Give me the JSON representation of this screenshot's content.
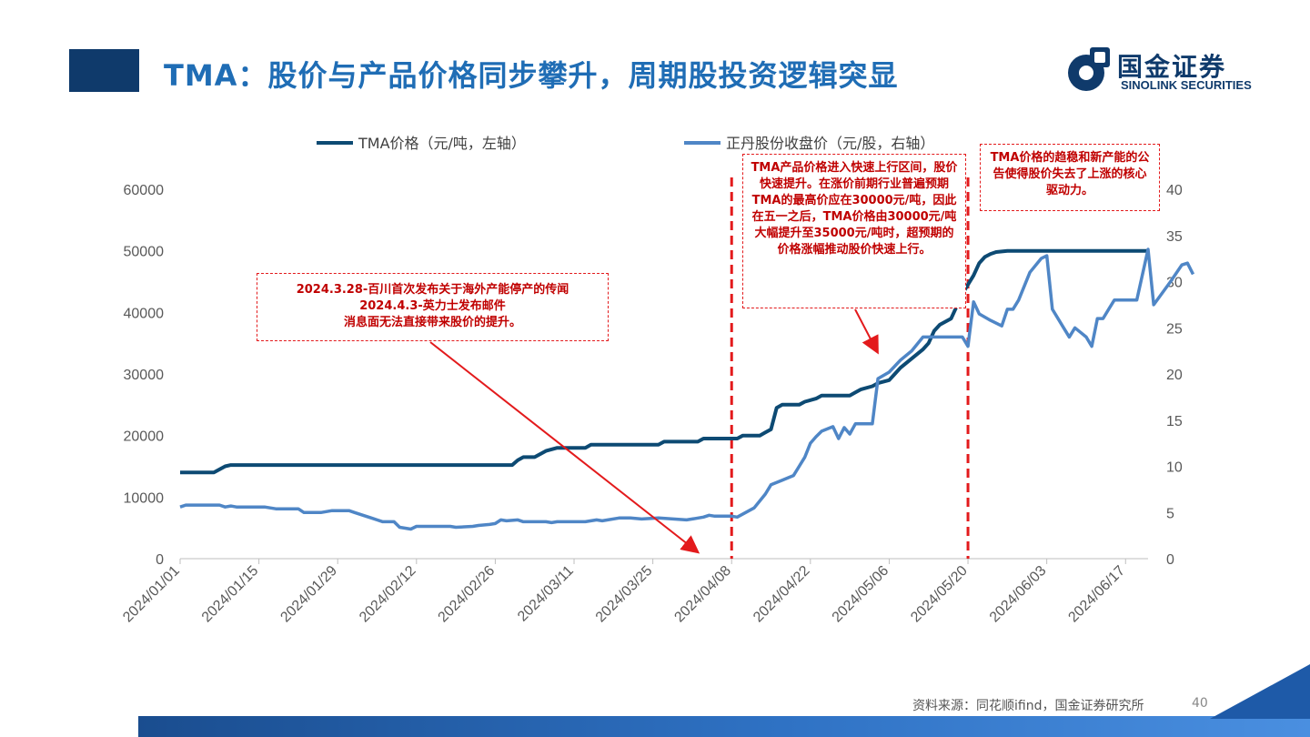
{
  "header": {
    "title": "TMA：股价与产品价格同步攀升，周期股投资逻辑突显",
    "logo_cn": "国金证券",
    "logo_en": "SINOLINK SECURITIES"
  },
  "colors": {
    "title_bar": "#0f3a6b",
    "title_text": "#1f6db5",
    "tma_line": "#0d4a73",
    "stock_line": "#4f86c6",
    "annotation": "#e31a1c"
  },
  "annotations": {
    "note1": "2024.3.28-百川首次发布关于海外产能停产的传闻\n2024.4.3-英力士发布邮件\n消息面无法直接带来股价的提升。",
    "note2": "TMA产品价格进入快速上行区间，股价快速提升。在涨价前期行业普遍预期TMA的最高价应在30000元/吨，因此在五一之后，TMA价格由30000元/吨大幅提升至35000元/吨时，超预期的价格涨幅推动股价快速上行。",
    "note3": "TMA价格的趋稳和新产能的公告使得股价失去了上涨的核心驱动力。"
  },
  "footer": {
    "source": "资料来源：同花顺ifind，国金证券研究所",
    "page": "40"
  },
  "chart_data": {
    "type": "line",
    "x_start": "2024/01/01",
    "x_end": "2024/06/21",
    "x_ticks": [
      "2024/01/01",
      "2024/01/15",
      "2024/01/29",
      "2024/02/12",
      "2024/02/26",
      "2024/03/11",
      "2024/03/25",
      "2024/04/08",
      "2024/04/22",
      "2024/05/06",
      "2024/05/20",
      "2024/06/03",
      "2024/06/17"
    ],
    "y_left": {
      "min": 0,
      "max": 60000,
      "ticks": [
        0,
        10000,
        20000,
        30000,
        40000,
        50000,
        60000
      ]
    },
    "y_right": {
      "min": 0,
      "max": 40,
      "ticks": [
        0,
        5,
        10,
        15,
        20,
        25,
        30,
        35,
        40
      ]
    },
    "vlines": [
      "2024/04/08",
      "2024/05/20"
    ],
    "series": [
      {
        "name": "TMA价格（元/吨，左轴）",
        "axis": "left",
        "points": [
          [
            "2024/01/01",
            14000
          ],
          [
            "2024/01/07",
            14000
          ],
          [
            "2024/01/08",
            14500
          ],
          [
            "2024/01/09",
            15000
          ],
          [
            "2024/01/10",
            15200
          ],
          [
            "2024/02/29",
            15200
          ],
          [
            "2024/03/01",
            16000
          ],
          [
            "2024/03/02",
            16500
          ],
          [
            "2024/03/04",
            16500
          ],
          [
            "2024/03/06",
            17500
          ],
          [
            "2024/03/08",
            18000
          ],
          [
            "2024/03/13",
            18000
          ],
          [
            "2024/03/14",
            18500
          ],
          [
            "2024/03/26",
            18500
          ],
          [
            "2024/03/27",
            19000
          ],
          [
            "2024/04/02",
            19000
          ],
          [
            "2024/04/03",
            19500
          ],
          [
            "2024/04/09",
            19500
          ],
          [
            "2024/04/10",
            20000
          ],
          [
            "2024/04/13",
            20000
          ],
          [
            "2024/04/14",
            20500
          ],
          [
            "2024/04/15",
            21000
          ],
          [
            "2024/04/16",
            24500
          ],
          [
            "2024/04/17",
            25000
          ],
          [
            "2024/04/20",
            25000
          ],
          [
            "2024/04/21",
            25500
          ],
          [
            "2024/04/23",
            26000
          ],
          [
            "2024/04/24",
            26500
          ],
          [
            "2024/04/29",
            26500
          ],
          [
            "2024/04/30",
            27000
          ],
          [
            "2024/05/01",
            27500
          ],
          [
            "2024/05/03",
            28000
          ],
          [
            "2024/05/04",
            28500
          ],
          [
            "2024/05/06",
            29000
          ],
          [
            "2024/05/07",
            30000
          ],
          [
            "2024/05/08",
            31000
          ],
          [
            "2024/05/10",
            32500
          ],
          [
            "2024/05/12",
            34000
          ],
          [
            "2024/05/13",
            35000
          ],
          [
            "2024/05/14",
            37000
          ],
          [
            "2024/05/15",
            38000
          ],
          [
            "2024/05/17",
            39000
          ],
          [
            "2024/05/18",
            41000
          ],
          [
            "2024/05/19",
            43000
          ],
          [
            "2024/05/20",
            44500
          ],
          [
            "2024/05/21",
            46000
          ],
          [
            "2024/05/22",
            48000
          ],
          [
            "2024/05/23",
            49000
          ],
          [
            "2024/05/24",
            49500
          ],
          [
            "2024/05/25",
            49800
          ],
          [
            "2024/05/27",
            50000
          ],
          [
            "2024/06/21",
            50000
          ]
        ]
      },
      {
        "name": "正丹股份收盘价（元/股，右轴）",
        "axis": "right",
        "points": [
          [
            "2024/01/01",
            5.6
          ],
          [
            "2024/01/02",
            5.8
          ],
          [
            "2024/01/08",
            5.8
          ],
          [
            "2024/01/09",
            5.6
          ],
          [
            "2024/01/10",
            5.7
          ],
          [
            "2024/01/11",
            5.6
          ],
          [
            "2024/01/16",
            5.6
          ],
          [
            "2024/01/18",
            5.4
          ],
          [
            "2024/01/22",
            5.4
          ],
          [
            "2024/01/23",
            5.0
          ],
          [
            "2024/01/26",
            5.0
          ],
          [
            "2024/01/28",
            5.2
          ],
          [
            "2024/01/31",
            5.2
          ],
          [
            "2024/02/01",
            5.0
          ],
          [
            "2024/02/03",
            4.6
          ],
          [
            "2024/02/04",
            4.4
          ],
          [
            "2024/02/05",
            4.2
          ],
          [
            "2024/02/06",
            4.0
          ],
          [
            "2024/02/08",
            4.0
          ],
          [
            "2024/02/09",
            3.4
          ],
          [
            "2024/02/11",
            3.2
          ],
          [
            "2024/02/12",
            3.5
          ],
          [
            "2024/02/18",
            3.5
          ],
          [
            "2024/02/19",
            3.4
          ],
          [
            "2024/02/22",
            3.5
          ],
          [
            "2024/02/23",
            3.6
          ],
          [
            "2024/02/25",
            3.7
          ],
          [
            "2024/02/26",
            3.8
          ],
          [
            "2024/02/27",
            4.2
          ],
          [
            "2024/02/28",
            4.1
          ],
          [
            "2024/03/01",
            4.2
          ],
          [
            "2024/03/02",
            4.0
          ],
          [
            "2024/03/06",
            4.0
          ],
          [
            "2024/03/07",
            3.9
          ],
          [
            "2024/03/08",
            4.0
          ],
          [
            "2024/03/13",
            4.0
          ],
          [
            "2024/03/14",
            4.1
          ],
          [
            "2024/03/15",
            4.2
          ],
          [
            "2024/03/16",
            4.1
          ],
          [
            "2024/03/19",
            4.4
          ],
          [
            "2024/03/21",
            4.4
          ],
          [
            "2024/03/23",
            4.3
          ],
          [
            "2024/03/26",
            4.4
          ],
          [
            "2024/03/31",
            4.2
          ],
          [
            "2024/04/01",
            4.3
          ],
          [
            "2024/04/03",
            4.5
          ],
          [
            "2024/04/04",
            4.7
          ],
          [
            "2024/04/05",
            4.6
          ],
          [
            "2024/04/08",
            4.6
          ],
          [
            "2024/04/09",
            4.5
          ],
          [
            "2024/04/12",
            5.5
          ],
          [
            "2024/04/14",
            7.0
          ],
          [
            "2024/04/15",
            8.0
          ],
          [
            "2024/04/17",
            8.5
          ],
          [
            "2024/04/19",
            9.0
          ],
          [
            "2024/04/20",
            10.0
          ],
          [
            "2024/04/21",
            11.0
          ],
          [
            "2024/04/22",
            12.5
          ],
          [
            "2024/04/23",
            13.2
          ],
          [
            "2024/04/24",
            13.8
          ],
          [
            "2024/04/26",
            14.3
          ],
          [
            "2024/04/27",
            13.0
          ],
          [
            "2024/04/28",
            14.2
          ],
          [
            "2024/04/29",
            13.5
          ],
          [
            "2024/04/30",
            14.6
          ],
          [
            "2024/05/01",
            14.6
          ],
          [
            "2024/05/03",
            14.6
          ],
          [
            "2024/05/04",
            19.5
          ],
          [
            "2024/05/06",
            20.2
          ],
          [
            "2024/05/08",
            21.5
          ],
          [
            "2024/05/10",
            22.5
          ],
          [
            "2024/05/12",
            24.0
          ],
          [
            "2024/05/13",
            24.0
          ],
          [
            "2024/05/19",
            24.0
          ],
          [
            "2024/05/20",
            23.0
          ],
          [
            "2024/05/21",
            27.8
          ],
          [
            "2024/05/22",
            26.5
          ],
          [
            "2024/05/24",
            25.8
          ],
          [
            "2024/05/26",
            25.2
          ],
          [
            "2024/05/27",
            27.0
          ],
          [
            "2024/05/28",
            27.0
          ],
          [
            "2024/05/29",
            28.0
          ],
          [
            "2024/05/31",
            31.0
          ],
          [
            "2024/06/02",
            32.5
          ],
          [
            "2024/06/03",
            32.8
          ],
          [
            "2024/06/04",
            27.0
          ],
          [
            "2024/06/06",
            25.0
          ],
          [
            "2024/06/07",
            24.0
          ],
          [
            "2024/06/08",
            25.0
          ],
          [
            "2024/06/09",
            24.5
          ],
          [
            "2024/06/10",
            24.0
          ],
          [
            "2024/06/11",
            23.0
          ],
          [
            "2024/06/12",
            26.0
          ],
          [
            "2024/06/13",
            26.0
          ],
          [
            "2024/06/14",
            27.0
          ],
          [
            "2024/06/15",
            28.0
          ],
          [
            "2024/06/17",
            28.0
          ],
          [
            "2024/06/19",
            28.0
          ],
          [
            "2024/06/21",
            33.5
          ],
          [
            "2024/06/22",
            27.5
          ],
          [
            "2024/06/25",
            30.0
          ],
          [
            "2024/06/27",
            31.8
          ],
          [
            "2024/06/28",
            32.0
          ],
          [
            "2024/06/29",
            30.8
          ]
        ]
      }
    ]
  }
}
